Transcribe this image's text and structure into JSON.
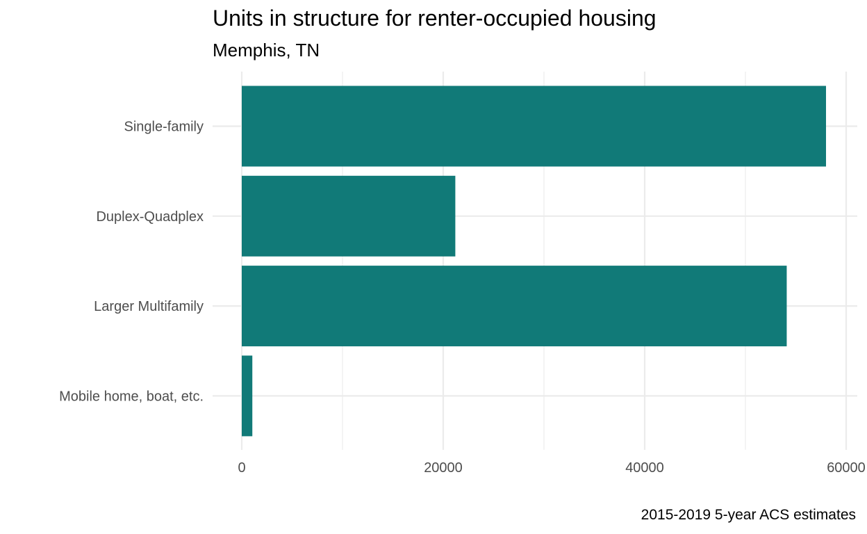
{
  "chart_data": {
    "type": "bar",
    "orientation": "horizontal",
    "title": "Units in structure for renter-occupied housing",
    "subtitle": "Memphis, TN",
    "caption": "2015-2019 5-year ACS estimates",
    "xlabel": "",
    "ylabel": "",
    "categories": [
      "Single-family",
      "Duplex-Quadplex",
      "Larger Multifamily",
      "Mobile home, boat, etc."
    ],
    "values": [
      58000,
      21200,
      54100,
      1050
    ],
    "xlim": [
      0,
      60000
    ],
    "x_ticks": [
      0,
      20000,
      40000,
      60000
    ],
    "x_tick_labels": [
      "0",
      "20000",
      "40000",
      "60000"
    ],
    "grid": true,
    "legend": "none",
    "bar_color": "#117a78",
    "grid_color": "#ebebeb"
  }
}
